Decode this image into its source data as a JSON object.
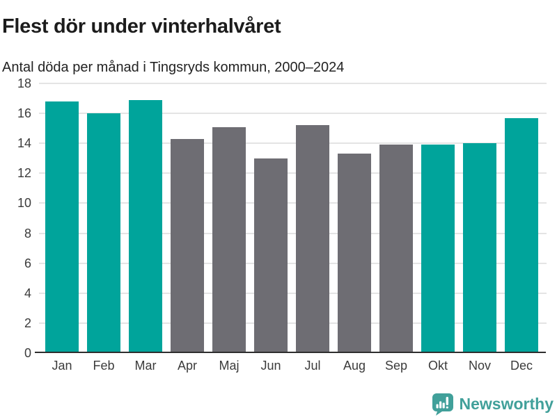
{
  "header": {
    "title": "Flest dör under vinterhalvåret",
    "subtitle": "Antal döda per månad i Tingsryds kommun, 2000–2024"
  },
  "chart_data": {
    "type": "bar",
    "title": "Flest dör under vinterhalvåret",
    "subtitle": "Antal döda per månad i Tingsryds kommun, 2000–2024",
    "categories": [
      "Jan",
      "Feb",
      "Mar",
      "Apr",
      "Maj",
      "Jun",
      "Jul",
      "Aug",
      "Sep",
      "Okt",
      "Nov",
      "Dec"
    ],
    "values": [
      16.8,
      16.0,
      16.9,
      14.3,
      15.1,
      13.0,
      15.2,
      13.3,
      13.9,
      13.9,
      14.0,
      15.7
    ],
    "bar_colors": [
      "#00a49b",
      "#00a49b",
      "#00a49b",
      "#6e6d73",
      "#6e6d73",
      "#6e6d73",
      "#6e6d73",
      "#6e6d73",
      "#6e6d73",
      "#00a49b",
      "#00a49b",
      "#00a49b"
    ],
    "xlabel": "",
    "ylabel": "",
    "ylim": [
      0,
      18
    ],
    "yticks": [
      0,
      2,
      4,
      6,
      8,
      10,
      12,
      14,
      16,
      18
    ],
    "grid": "horizontal",
    "legend": "none"
  },
  "colors": {
    "highlight_teal": "#00a49b",
    "neutral_gray": "#6e6d73",
    "gridline": "#e4e4e4",
    "axis_line": "#2e2e2e",
    "title_text": "#1c1c1c",
    "tick_text": "#3b3b3b",
    "logo_teal": "#41a09a"
  },
  "footer": {
    "brand": "Newsworthy",
    "logo_icon": "bar-chart-exclamation-speech-bubble-icon"
  }
}
